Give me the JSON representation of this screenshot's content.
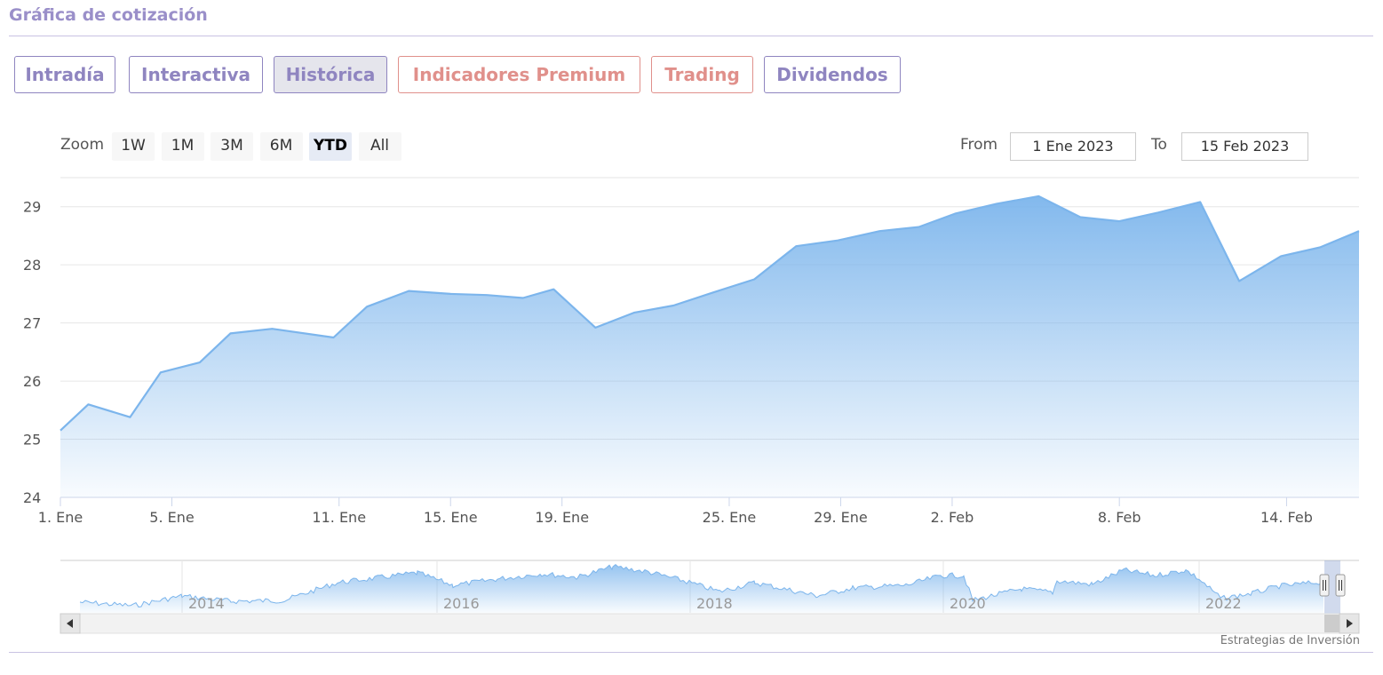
{
  "page": {
    "title": "Gráfica de cotización"
  },
  "tabs": [
    {
      "label": "Intradía",
      "style": "purple",
      "active": false
    },
    {
      "label": "Interactiva",
      "style": "purple",
      "active": false
    },
    {
      "label": "Histórica",
      "style": "purple",
      "active": true
    },
    {
      "label": "Indicadores Premium",
      "style": "salmon",
      "active": false
    },
    {
      "label": "Trading",
      "style": "salmon",
      "active": false
    },
    {
      "label": "Dividendos",
      "style": "purple",
      "active": false
    }
  ],
  "zoom": {
    "label": "Zoom",
    "buttons": [
      "1W",
      "1M",
      "3M",
      "6M",
      "YTD",
      "All"
    ],
    "selected": "YTD"
  },
  "range": {
    "from_label": "From",
    "from_value": "1 Ene 2023",
    "to_label": "To",
    "to_value": "15 Feb 2023"
  },
  "credit": "Estrategias de Inversión",
  "colors": {
    "accent_purple": "#8f85c0",
    "accent_salmon": "#e0908b",
    "series_line": "#7cb5ec"
  },
  "chart_data": {
    "type": "area",
    "title": "",
    "xlabel": "",
    "ylabel": "",
    "ylim": [
      24,
      29.5
    ],
    "yticks": [
      24,
      25,
      26,
      27,
      28,
      29
    ],
    "grid": true,
    "x_ticks": [
      {
        "label": "1. Ene",
        "day": 1
      },
      {
        "label": "5. Ene",
        "day": 5
      },
      {
        "label": "11. Ene",
        "day": 11
      },
      {
        "label": "15. Ene",
        "day": 15
      },
      {
        "label": "19. Ene",
        "day": 19
      },
      {
        "label": "25. Ene",
        "day": 25
      },
      {
        "label": "29. Ene",
        "day": 29
      },
      {
        "label": "2. Feb",
        "day": 33
      },
      {
        "label": "8. Feb",
        "day": 39
      },
      {
        "label": "14. Feb",
        "day": 45
      }
    ],
    "series": [
      {
        "points": [
          {
            "day": 1,
            "value": 25.15
          },
          {
            "day": 2,
            "value": 25.6
          },
          {
            "day": 3.5,
            "value": 25.38
          },
          {
            "day": 4.6,
            "value": 26.15
          },
          {
            "day": 6,
            "value": 26.32
          },
          {
            "day": 7.1,
            "value": 26.82
          },
          {
            "day": 8.6,
            "value": 26.9
          },
          {
            "day": 10.8,
            "value": 26.75
          },
          {
            "day": 12,
            "value": 27.28
          },
          {
            "day": 13.5,
            "value": 27.55
          },
          {
            "day": 15,
            "value": 27.5
          },
          {
            "day": 16.3,
            "value": 27.48
          },
          {
            "day": 17.6,
            "value": 27.43
          },
          {
            "day": 18.7,
            "value": 27.58
          },
          {
            "day": 20.2,
            "value": 26.92
          },
          {
            "day": 21.6,
            "value": 27.18
          },
          {
            "day": 23,
            "value": 27.3
          },
          {
            "day": 24.4,
            "value": 27.52
          },
          {
            "day": 25.9,
            "value": 27.75
          },
          {
            "day": 27.4,
            "value": 28.32
          },
          {
            "day": 28.9,
            "value": 28.42
          },
          {
            "day": 30.4,
            "value": 28.58
          },
          {
            "day": 31.8,
            "value": 28.65
          },
          {
            "day": 33.1,
            "value": 28.88
          },
          {
            "day": 34.6,
            "value": 29.05
          },
          {
            "day": 36.1,
            "value": 29.18
          },
          {
            "day": 37.6,
            "value": 28.82
          },
          {
            "day": 39,
            "value": 28.75
          },
          {
            "day": 40.4,
            "value": 28.9
          },
          {
            "day": 41.9,
            "value": 29.08
          },
          {
            "day": 43.3,
            "value": 27.72
          },
          {
            "day": 44.8,
            "value": 28.15
          },
          {
            "day": 46.2,
            "value": 28.3
          },
          {
            "day": 47.6,
            "value": 28.58
          }
        ]
      }
    ],
    "navigator": {
      "x_labels": [
        "2014",
        "2016",
        "2018",
        "2020",
        "2022"
      ]
    }
  }
}
